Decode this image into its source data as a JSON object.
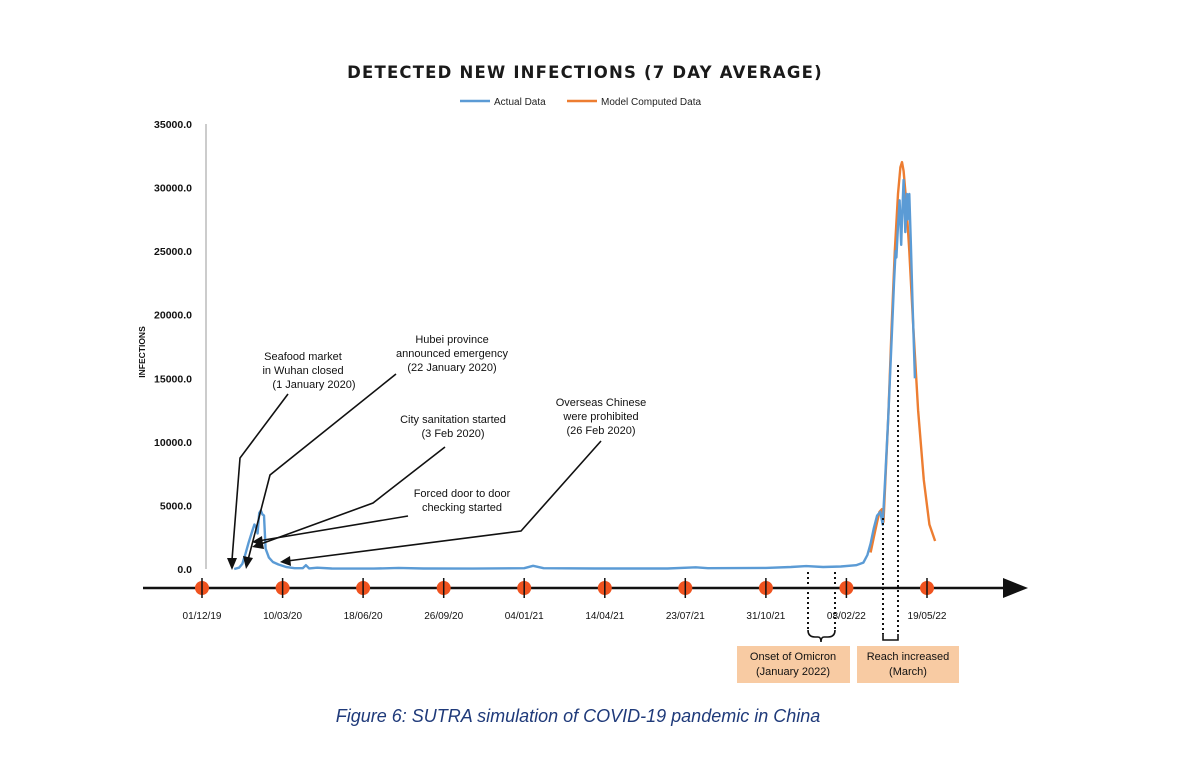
{
  "figure": {
    "caption": "Figure 6: SUTRA simulation of COVID-19 pandemic in China"
  },
  "chart_data": {
    "type": "line",
    "title": "DETECTED NEW INFECTIONS (7 DAY AVERAGE)",
    "ylabel": "INFECTIONS",
    "xlabel": "",
    "ylim": [
      0,
      35000
    ],
    "yticks": [
      "35000.0",
      "30000.0",
      "25000.0",
      "20000.0",
      "15000.0",
      "10000.0",
      "5000.0",
      "0.0"
    ],
    "ytick_values": [
      35000,
      30000,
      25000,
      20000,
      15000,
      10000,
      5000,
      0
    ],
    "xlim": [
      "2019-12-01",
      "2022-07-20"
    ],
    "xtick_labels": [
      "01/12/19",
      "10/03/20",
      "18/06/20",
      "26/09/20",
      "04/01/21",
      "14/04/21",
      "23/07/21",
      "31/10/21",
      "08/02/22",
      "19/05/22"
    ],
    "xtick_dates": [
      "2019-12-01",
      "2020-03-10",
      "2020-06-18",
      "2020-09-26",
      "2021-01-04",
      "2021-04-14",
      "2021-07-23",
      "2021-10-31",
      "2022-02-08",
      "2022-05-19"
    ],
    "legend_position": "top-center",
    "series": [
      {
        "name": "Actual Data",
        "color": "#5b9bd5",
        "points": [
          [
            "2020-01-10",
            0
          ],
          [
            "2020-01-16",
            100
          ],
          [
            "2020-01-20",
            400
          ],
          [
            "2020-01-24",
            1200
          ],
          [
            "2020-01-28",
            2100
          ],
          [
            "2020-02-01",
            2900
          ],
          [
            "2020-02-04",
            3500
          ],
          [
            "2020-02-06",
            3300
          ],
          [
            "2020-02-08",
            2800
          ],
          [
            "2020-02-10",
            4400
          ],
          [
            "2020-02-12",
            4600
          ],
          [
            "2020-02-14",
            4300
          ],
          [
            "2020-02-16",
            4200
          ],
          [
            "2020-02-18",
            1600
          ],
          [
            "2020-02-22",
            900
          ],
          [
            "2020-02-27",
            550
          ],
          [
            "2020-03-05",
            350
          ],
          [
            "2020-03-15",
            150
          ],
          [
            "2020-03-25",
            60
          ],
          [
            "2020-04-04",
            60
          ],
          [
            "2020-04-08",
            300
          ],
          [
            "2020-04-12",
            50
          ],
          [
            "2020-04-22",
            100
          ],
          [
            "2020-05-10",
            40
          ],
          [
            "2020-07-01",
            30
          ],
          [
            "2020-08-01",
            90
          ],
          [
            "2020-09-01",
            40
          ],
          [
            "2020-11-01",
            30
          ],
          [
            "2021-01-04",
            60
          ],
          [
            "2021-01-15",
            250
          ],
          [
            "2021-01-28",
            60
          ],
          [
            "2021-04-01",
            40
          ],
          [
            "2021-07-01",
            40
          ],
          [
            "2021-08-05",
            130
          ],
          [
            "2021-08-20",
            60
          ],
          [
            "2021-10-31",
            90
          ],
          [
            "2021-12-01",
            160
          ],
          [
            "2021-12-20",
            230
          ],
          [
            "2022-01-10",
            160
          ],
          [
            "2022-02-01",
            200
          ],
          [
            "2022-02-20",
            300
          ],
          [
            "2022-03-01",
            500
          ],
          [
            "2022-03-06",
            1100
          ],
          [
            "2022-03-10",
            2000
          ],
          [
            "2022-03-14",
            3200
          ],
          [
            "2022-03-18",
            4200
          ],
          [
            "2022-03-22",
            4500
          ],
          [
            "2022-03-25",
            3500
          ],
          [
            "2022-03-28",
            7000
          ],
          [
            "2022-04-01",
            12000
          ],
          [
            "2022-04-05",
            18000
          ],
          [
            "2022-04-08",
            22500
          ],
          [
            "2022-04-10",
            25000
          ],
          [
            "2022-04-11",
            24500
          ],
          [
            "2022-04-13",
            27000
          ],
          [
            "2022-04-15",
            29000
          ],
          [
            "2022-04-17",
            25500
          ],
          [
            "2022-04-18",
            27500
          ],
          [
            "2022-04-20",
            30600
          ],
          [
            "2022-04-22",
            26500
          ],
          [
            "2022-04-24",
            29500
          ],
          [
            "2022-04-25",
            27500
          ],
          [
            "2022-04-27",
            29500
          ],
          [
            "2022-04-29",
            25500
          ],
          [
            "2022-05-01",
            21000
          ],
          [
            "2022-05-04",
            15000
          ]
        ]
      },
      {
        "name": "Model Computed Data",
        "color": "#ed7d31",
        "points": [
          [
            "2022-03-10",
            1300
          ],
          [
            "2022-03-14",
            2500
          ],
          [
            "2022-03-18",
            3700
          ],
          [
            "2022-03-21",
            4500
          ],
          [
            "2022-03-24",
            4700
          ],
          [
            "2022-03-26",
            3700
          ],
          [
            "2022-03-28",
            6500
          ],
          [
            "2022-04-01",
            12000
          ],
          [
            "2022-04-05",
            19000
          ],
          [
            "2022-04-09",
            25000
          ],
          [
            "2022-04-13",
            29500
          ],
          [
            "2022-04-16",
            31600
          ],
          [
            "2022-04-18",
            32000
          ],
          [
            "2022-04-20",
            31300
          ],
          [
            "2022-04-23",
            29000
          ],
          [
            "2022-04-27",
            25000
          ],
          [
            "2022-05-02",
            19000
          ],
          [
            "2022-05-08",
            12500
          ],
          [
            "2022-05-15",
            7000
          ],
          [
            "2022-05-22",
            3500
          ],
          [
            "2022-05-29",
            2200
          ]
        ]
      }
    ],
    "annotations": [
      {
        "lines": [
          "Seafood market",
          "in Wuhan closed",
          "(1 January 2020)"
        ],
        "date": "2020-01-01"
      },
      {
        "lines": [
          "Hubei province",
          "announced emergency",
          "(22 January 2020)"
        ],
        "date": "2020-01-22"
      },
      {
        "lines": [
          "City sanitation started",
          "(3 Feb 2020)"
        ],
        "date": "2020-02-03"
      },
      {
        "lines": [
          "Forced door to door",
          "checking started"
        ],
        "date": "2020-02-03"
      },
      {
        "lines": [
          "Overseas Chinese",
          "were prohibited",
          "(26 Feb 2020)"
        ],
        "date": "2020-02-26"
      }
    ],
    "event_boxes": [
      {
        "lines": [
          "Onset of Omicron",
          "(January 2022)"
        ],
        "color": "#f8cba3"
      },
      {
        "lines": [
          "Reach increased",
          "(March)"
        ],
        "color": "#f8cba3"
      }
    ],
    "marker_color": "#f0531f",
    "axis_color": "#111111"
  }
}
